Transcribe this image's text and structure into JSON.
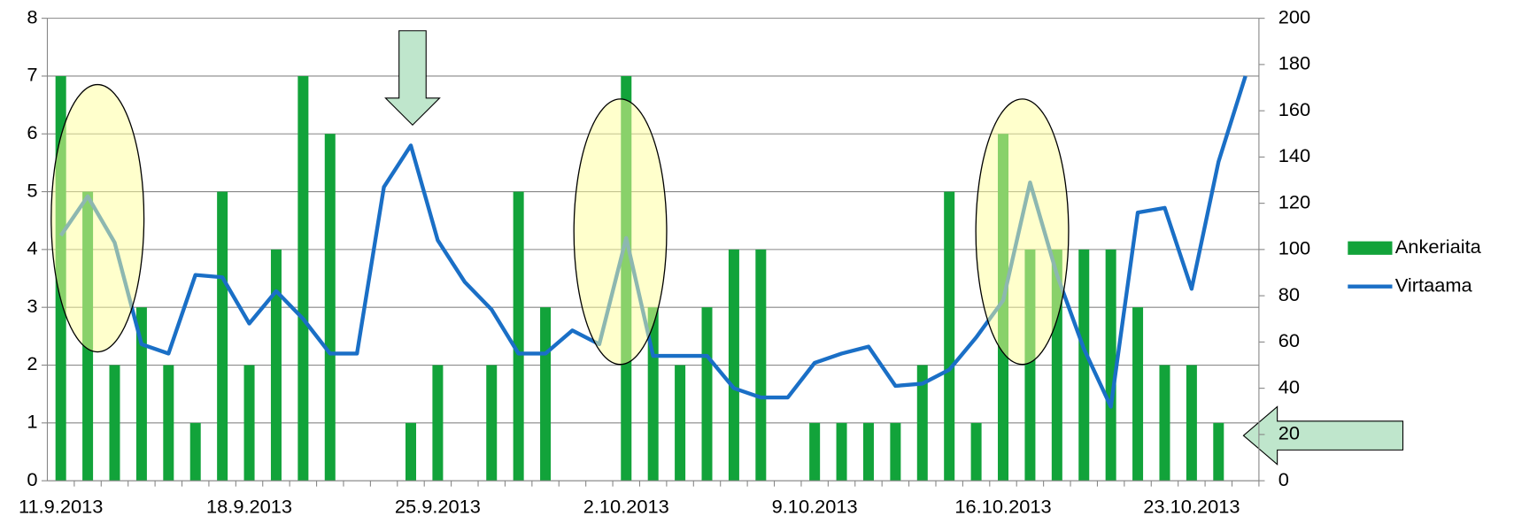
{
  "chart_data": {
    "type": "bar",
    "categories": [
      "11.9.2013",
      null,
      null,
      null,
      null,
      null,
      null,
      "18.9.2013",
      null,
      null,
      null,
      null,
      null,
      null,
      "25.9.2013",
      null,
      null,
      null,
      null,
      null,
      null,
      "2.10.2013",
      null,
      null,
      null,
      null,
      null,
      null,
      "9.10.2013",
      null,
      null,
      null,
      null,
      null,
      null,
      "16.10.2013",
      null,
      null,
      null,
      null,
      null,
      null,
      "23.10.2013",
      null,
      null
    ],
    "series": [
      {
        "name": "Ankeriaita",
        "type": "bar",
        "color": "#12a33a",
        "values": [
          7,
          5,
          2,
          3,
          2,
          1,
          5,
          2,
          4,
          7,
          6,
          0,
          0,
          1,
          2,
          0,
          2,
          5,
          3,
          0,
          0,
          7,
          3,
          2,
          3,
          4,
          4,
          0,
          1,
          1,
          1,
          1,
          2,
          5,
          1,
          6,
          4,
          4,
          4,
          4,
          3,
          2,
          2,
          1,
          0
        ]
      },
      {
        "name": "Virtaama",
        "type": "line",
        "axis": "y2",
        "color": "#1a6fc6",
        "values": [
          106,
          123,
          103,
          59,
          55,
          89,
          88,
          68,
          82,
          70,
          55,
          55,
          127,
          145,
          104,
          86,
          74,
          55,
          55,
          65,
          59,
          105,
          54,
          54,
          54,
          40,
          36,
          36,
          51,
          55,
          58,
          41,
          42,
          48,
          62,
          78,
          129,
          89,
          57,
          32,
          116,
          118,
          83,
          138,
          175
        ]
      }
    ],
    "ylim": [
      0,
      8
    ],
    "yticks": [
      0,
      1,
      2,
      3,
      4,
      5,
      6,
      7,
      8
    ],
    "y2lim": [
      0,
      200
    ],
    "y2ticks": [
      0,
      20,
      40,
      60,
      80,
      100,
      120,
      140,
      160,
      180,
      200
    ],
    "grid": true,
    "legend": "right"
  }
}
